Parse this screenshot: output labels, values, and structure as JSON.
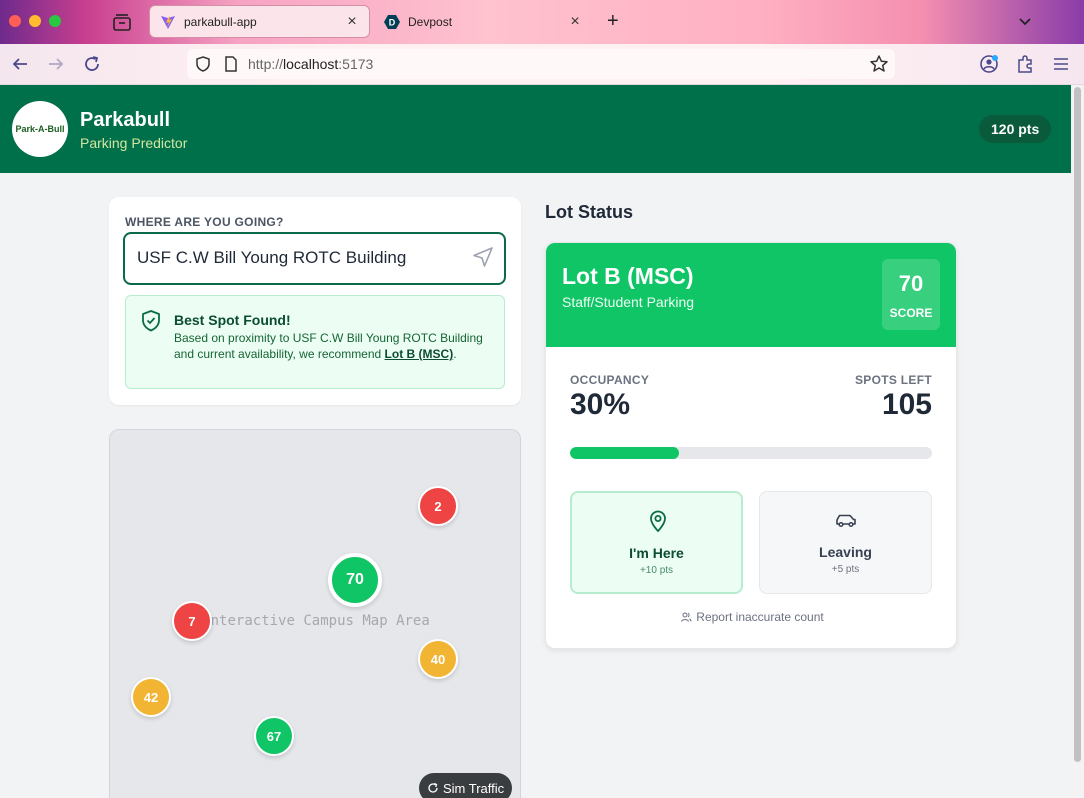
{
  "browser": {
    "tabs": [
      {
        "title": "parkabull-app",
        "active": true
      },
      {
        "title": "Devpost",
        "active": false
      }
    ],
    "url_prefix": "http://",
    "url_host": "localhost",
    "url_port": ":5173"
  },
  "header": {
    "logo_text": "Park-A-Bull",
    "title": "Parkabull",
    "subtitle": "Parking Predictor",
    "points": "120 pts"
  },
  "search": {
    "label": "WHERE ARE YOU GOING?",
    "value": "USF C.W Bill Young ROTC Building",
    "result_title": "Best Spot Found!",
    "result_text_before": "Based on proximity to USF C.W Bill Young ROTC Building and current availability, we recommend ",
    "result_lot": "Lot B (MSC)",
    "result_text_after": "."
  },
  "map": {
    "caption": "Interactive Campus Map Area",
    "markers": [
      {
        "value": "2",
        "status": "red"
      },
      {
        "value": "70",
        "status": "green"
      },
      {
        "value": "7",
        "status": "red"
      },
      {
        "value": "40",
        "status": "amber"
      },
      {
        "value": "42",
        "status": "amber"
      },
      {
        "value": "67",
        "status": "green"
      }
    ],
    "sim_button": "Sim Traffic"
  },
  "lot": {
    "heading": "Lot Status",
    "name": "Lot B (MSC)",
    "type": "Staff/Student Parking",
    "score": "70",
    "score_label": "SCORE",
    "occupancy_label": "OCCUPANCY",
    "occupancy": "30%",
    "occupancy_fraction": 0.3,
    "spots_label": "SPOTS LEFT",
    "spots": "105",
    "here_label": "I'm Here",
    "here_pts": "+10 pts",
    "leaving_label": "Leaving",
    "leaving_pts": "+5 pts",
    "report": "Report inaccurate count"
  },
  "colors": {
    "brand": "#00704a",
    "green": "#10c566",
    "amber": "#f2b533",
    "red": "#ef4444"
  }
}
